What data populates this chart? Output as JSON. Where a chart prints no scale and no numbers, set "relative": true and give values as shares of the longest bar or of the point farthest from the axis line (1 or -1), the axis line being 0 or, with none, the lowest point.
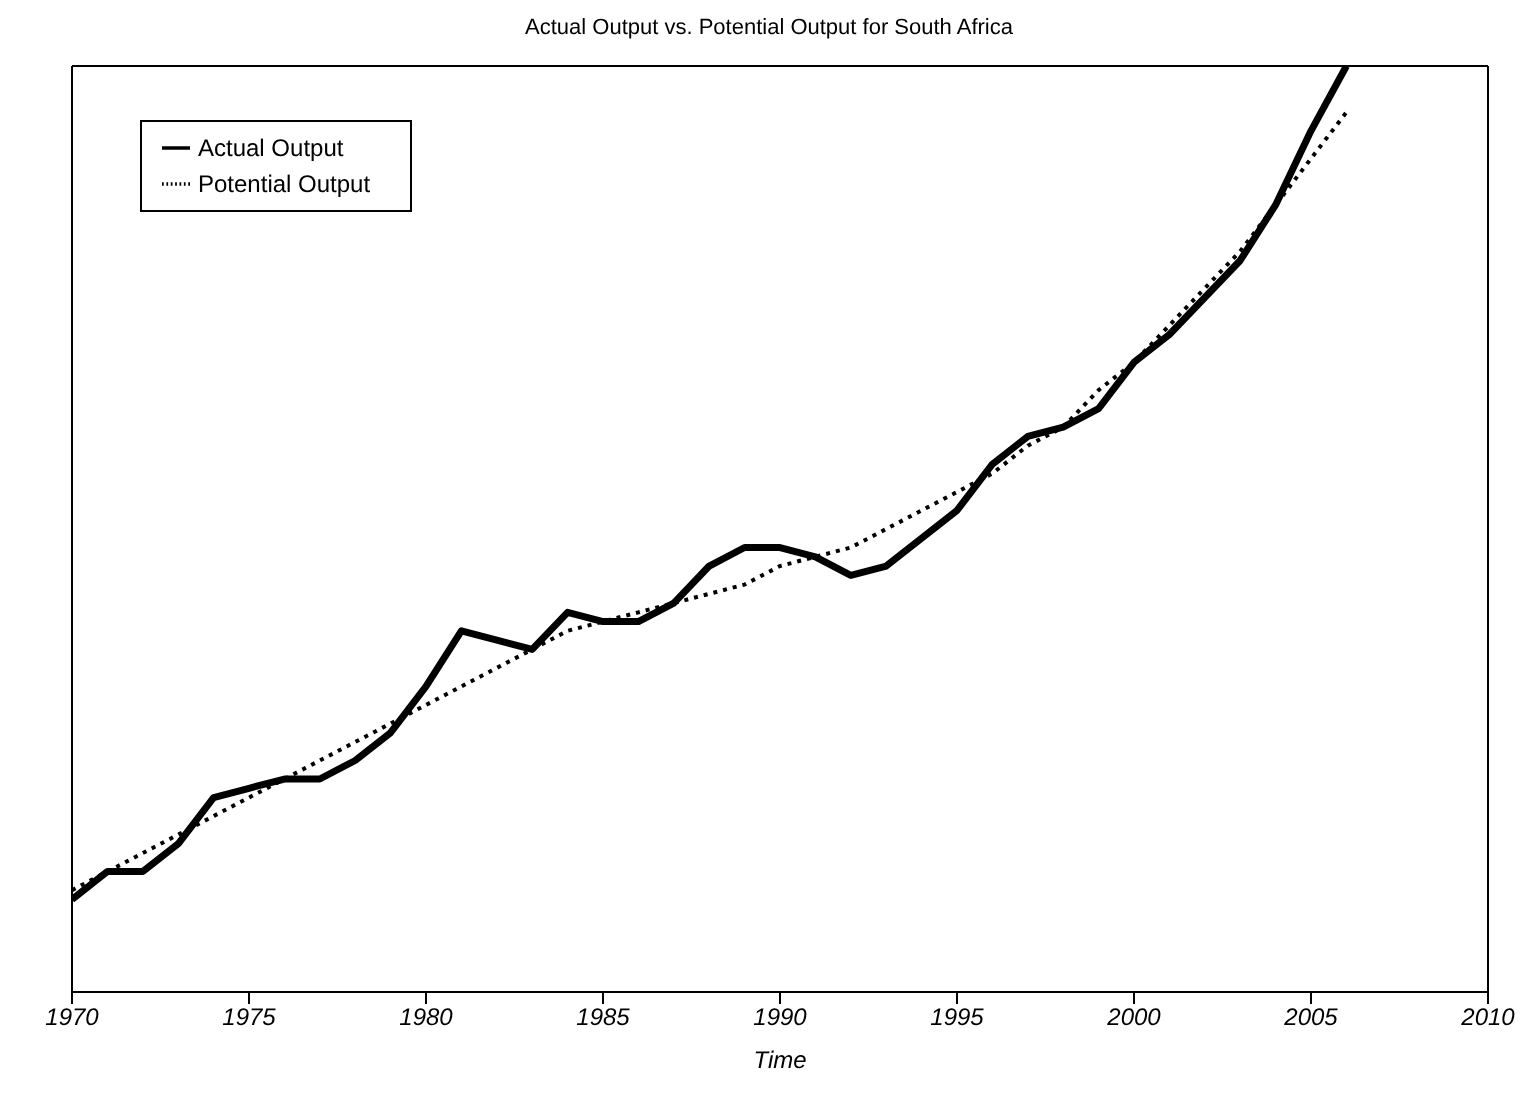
{
  "chart_data": {
    "type": "line",
    "title": "Actual Output vs. Potential Output for South Africa",
    "xlabel": "Time",
    "relative": true,
    "x": [
      1970,
      1971,
      1972,
      1973,
      1974,
      1975,
      1976,
      1977,
      1978,
      1979,
      1980,
      1981,
      1982,
      1983,
      1984,
      1985,
      1986,
      1987,
      1988,
      1989,
      1990,
      1991,
      1992,
      1993,
      1994,
      1995,
      1996,
      1997,
      1998,
      1999,
      2000,
      2001,
      2002,
      2003,
      2004,
      2005,
      2006
    ],
    "xlim": [
      1970,
      2010
    ],
    "xticks": [
      1970,
      1975,
      1980,
      1985,
      1990,
      1995,
      2000,
      2005,
      2010
    ],
    "legend": "top left",
    "series": [
      {
        "name": "Actual Output",
        "color": "#000000",
        "line_style": "solid",
        "values": [
          0.1,
          0.13,
          0.13,
          0.16,
          0.21,
          0.22,
          0.23,
          0.23,
          0.25,
          0.28,
          0.33,
          0.39,
          0.38,
          0.37,
          0.41,
          0.4,
          0.4,
          0.42,
          0.46,
          0.48,
          0.48,
          0.47,
          0.45,
          0.46,
          0.49,
          0.52,
          0.57,
          0.6,
          0.61,
          0.63,
          0.68,
          0.71,
          0.75,
          0.79,
          0.85,
          0.93,
          1
        ]
      },
      {
        "name": "Potential Output",
        "color": "#000000",
        "line_style": "dotted",
        "values": [
          0.11,
          0.13,
          0.15,
          0.17,
          0.19,
          0.21,
          0.23,
          0.25,
          0.27,
          0.29,
          0.31,
          0.33,
          0.35,
          0.37,
          0.39,
          0.4,
          0.41,
          0.42,
          0.43,
          0.44,
          0.46,
          0.47,
          0.48,
          0.5,
          0.52,
          0.54,
          0.56,
          0.59,
          0.61,
          0.65,
          0.68,
          0.72,
          0.76,
          0.8,
          0.85,
          0.9,
          0.95
        ]
      }
    ]
  }
}
